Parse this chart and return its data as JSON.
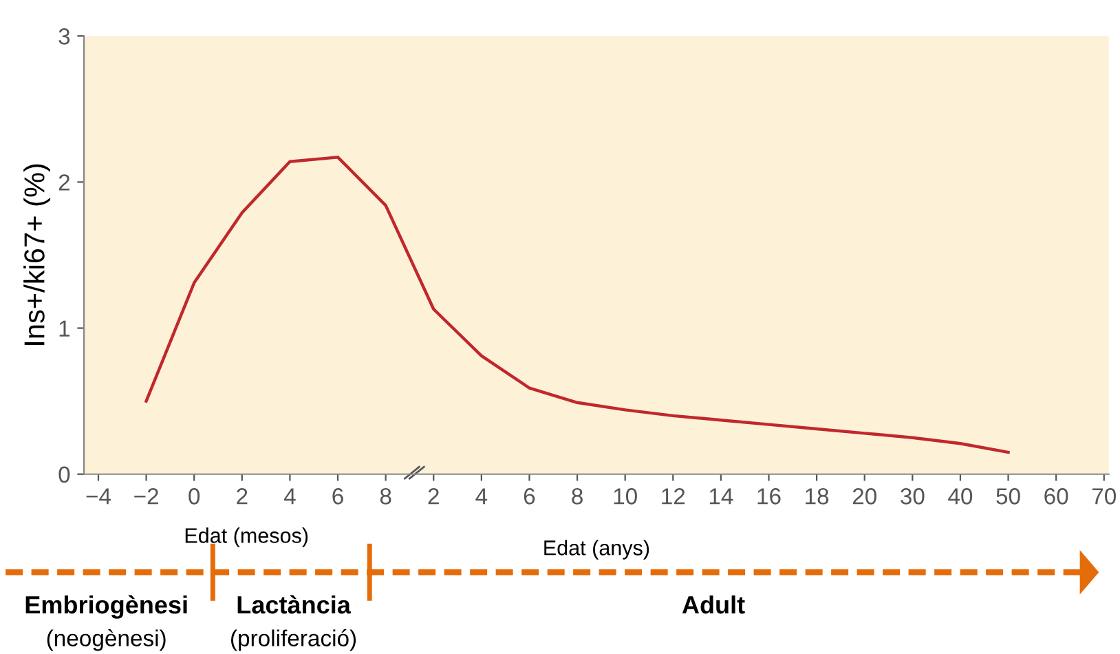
{
  "chart_data": {
    "type": "line",
    "ylabel": "Ins+/ki67+ (%)",
    "xlabel": "Edat (anys)",
    "categories": [
      "−4",
      "−2",
      "0",
      "2",
      "4",
      "6",
      "8",
      "2",
      "4",
      "6",
      "8",
      "10",
      "12",
      "14",
      "16",
      "18",
      "20",
      "30",
      "40",
      "50",
      "60",
      "70"
    ],
    "series": [
      {
        "color": "#c0282d",
        "values": [
          null,
          0.5,
          1.31,
          1.79,
          2.14,
          2.17,
          1.84,
          1.13,
          0.81,
          0.59,
          0.49,
          0.44,
          0.4,
          0.37,
          0.34,
          0.31,
          0.28,
          0.25,
          0.21,
          0.15,
          null,
          null
        ]
      }
    ],
    "ylim": [
      0,
      3
    ],
    "yticks": [
      0,
      1,
      2,
      3
    ],
    "grid": false,
    "marker": "none",
    "line_style": "solid",
    "annotations": [
      "Edat (mesos)",
      "Embriogènesi",
      "(neogènesi)",
      "Lactància",
      "(proliferació)",
      "Adult"
    ]
  }
}
